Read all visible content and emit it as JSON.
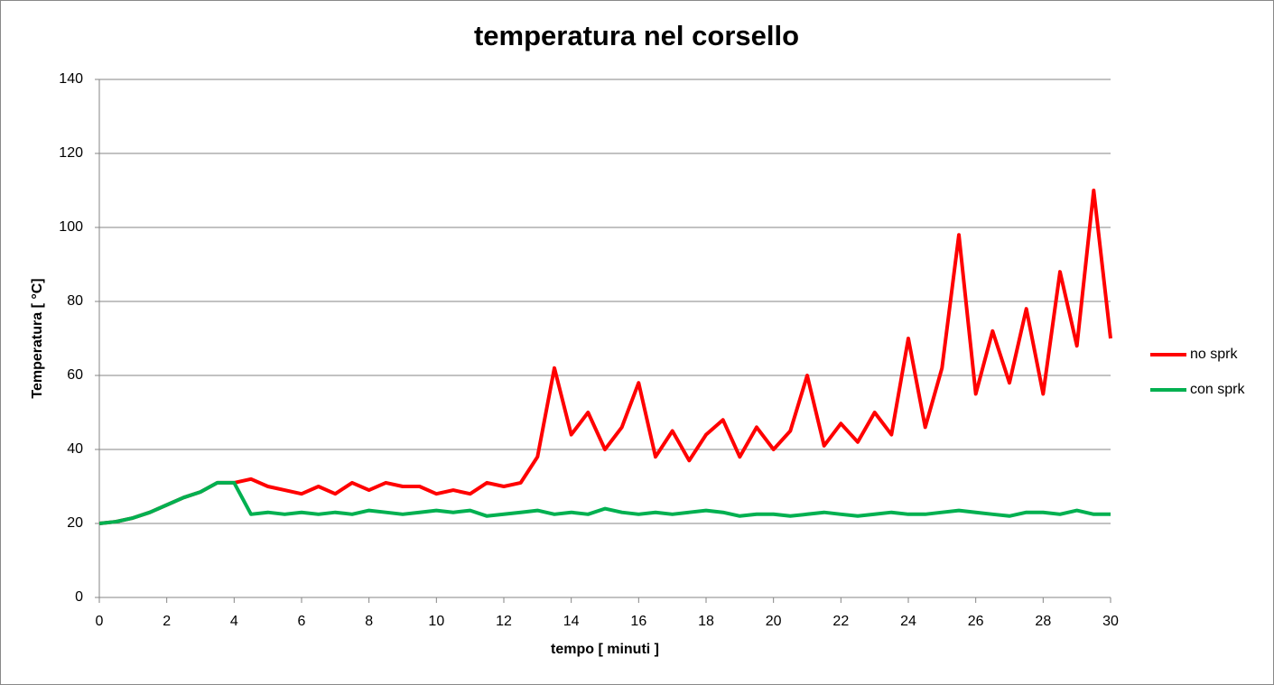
{
  "chart_data": {
    "type": "line",
    "title": "temperatura nel corsello",
    "x_label": "tempo  [ minuti ]",
    "y_label": "Temperatura  [ °C]",
    "x": [
      0,
      0.5,
      1,
      1.5,
      2,
      2.5,
      3,
      3.5,
      4,
      4.5,
      5,
      5.5,
      6,
      6.5,
      7,
      7.5,
      8,
      8.5,
      9,
      9.5,
      10,
      10.5,
      11,
      11.5,
      12,
      12.5,
      13,
      13.5,
      14,
      14.5,
      15,
      15.5,
      16,
      16.5,
      17,
      17.5,
      18,
      18.5,
      19,
      19.5,
      20,
      20.5,
      21,
      21.5,
      22,
      22.5,
      23,
      23.5,
      24,
      24.5,
      25,
      25.5,
      26,
      26.5,
      27,
      27.5,
      28,
      28.5,
      29,
      29.5,
      30
    ],
    "series": [
      {
        "name": "no sprk",
        "color": "#ff0000",
        "values": [
          20,
          20.5,
          21.5,
          23,
          25,
          27,
          28.5,
          31,
          31,
          32,
          30,
          29,
          28,
          30,
          28,
          31,
          29,
          31,
          30,
          30,
          28,
          29,
          28,
          31,
          30,
          31,
          38,
          62,
          44,
          50,
          40,
          46,
          58,
          38,
          45,
          37,
          44,
          48,
          38,
          46,
          40,
          45,
          60,
          41,
          47,
          42,
          50,
          44,
          70,
          46,
          62,
          98,
          55,
          72,
          58,
          78,
          55,
          88,
          68,
          110,
          70
        ]
      },
      {
        "name": "con sprk",
        "color": "#00b050",
        "values": [
          20,
          20.5,
          21.5,
          23,
          25,
          27,
          28.5,
          31,
          31,
          22.5,
          23,
          22.5,
          23,
          22.5,
          23,
          22.5,
          23.5,
          23,
          22.5,
          23,
          23.5,
          23,
          23.5,
          22,
          22.5,
          23,
          23.5,
          22.5,
          23,
          22.5,
          24,
          23,
          22.5,
          23,
          22.5,
          23,
          23.5,
          23,
          22,
          22.5,
          22.5,
          22,
          22.5,
          23,
          22.5,
          22,
          22.5,
          23,
          22.5,
          22.5,
          23,
          23.5,
          23,
          22.5,
          22,
          23,
          23,
          22.5,
          23.5,
          22.5,
          22.5
        ]
      }
    ],
    "xlim": [
      0,
      30
    ],
    "xticks": [
      0,
      2,
      4,
      6,
      8,
      10,
      12,
      14,
      16,
      18,
      20,
      22,
      24,
      26,
      28,
      30
    ],
    "ylim": [
      0,
      140
    ],
    "yticks": [
      0,
      20,
      40,
      60,
      80,
      100,
      120,
      140
    ],
    "grid": true,
    "legend": "right"
  }
}
